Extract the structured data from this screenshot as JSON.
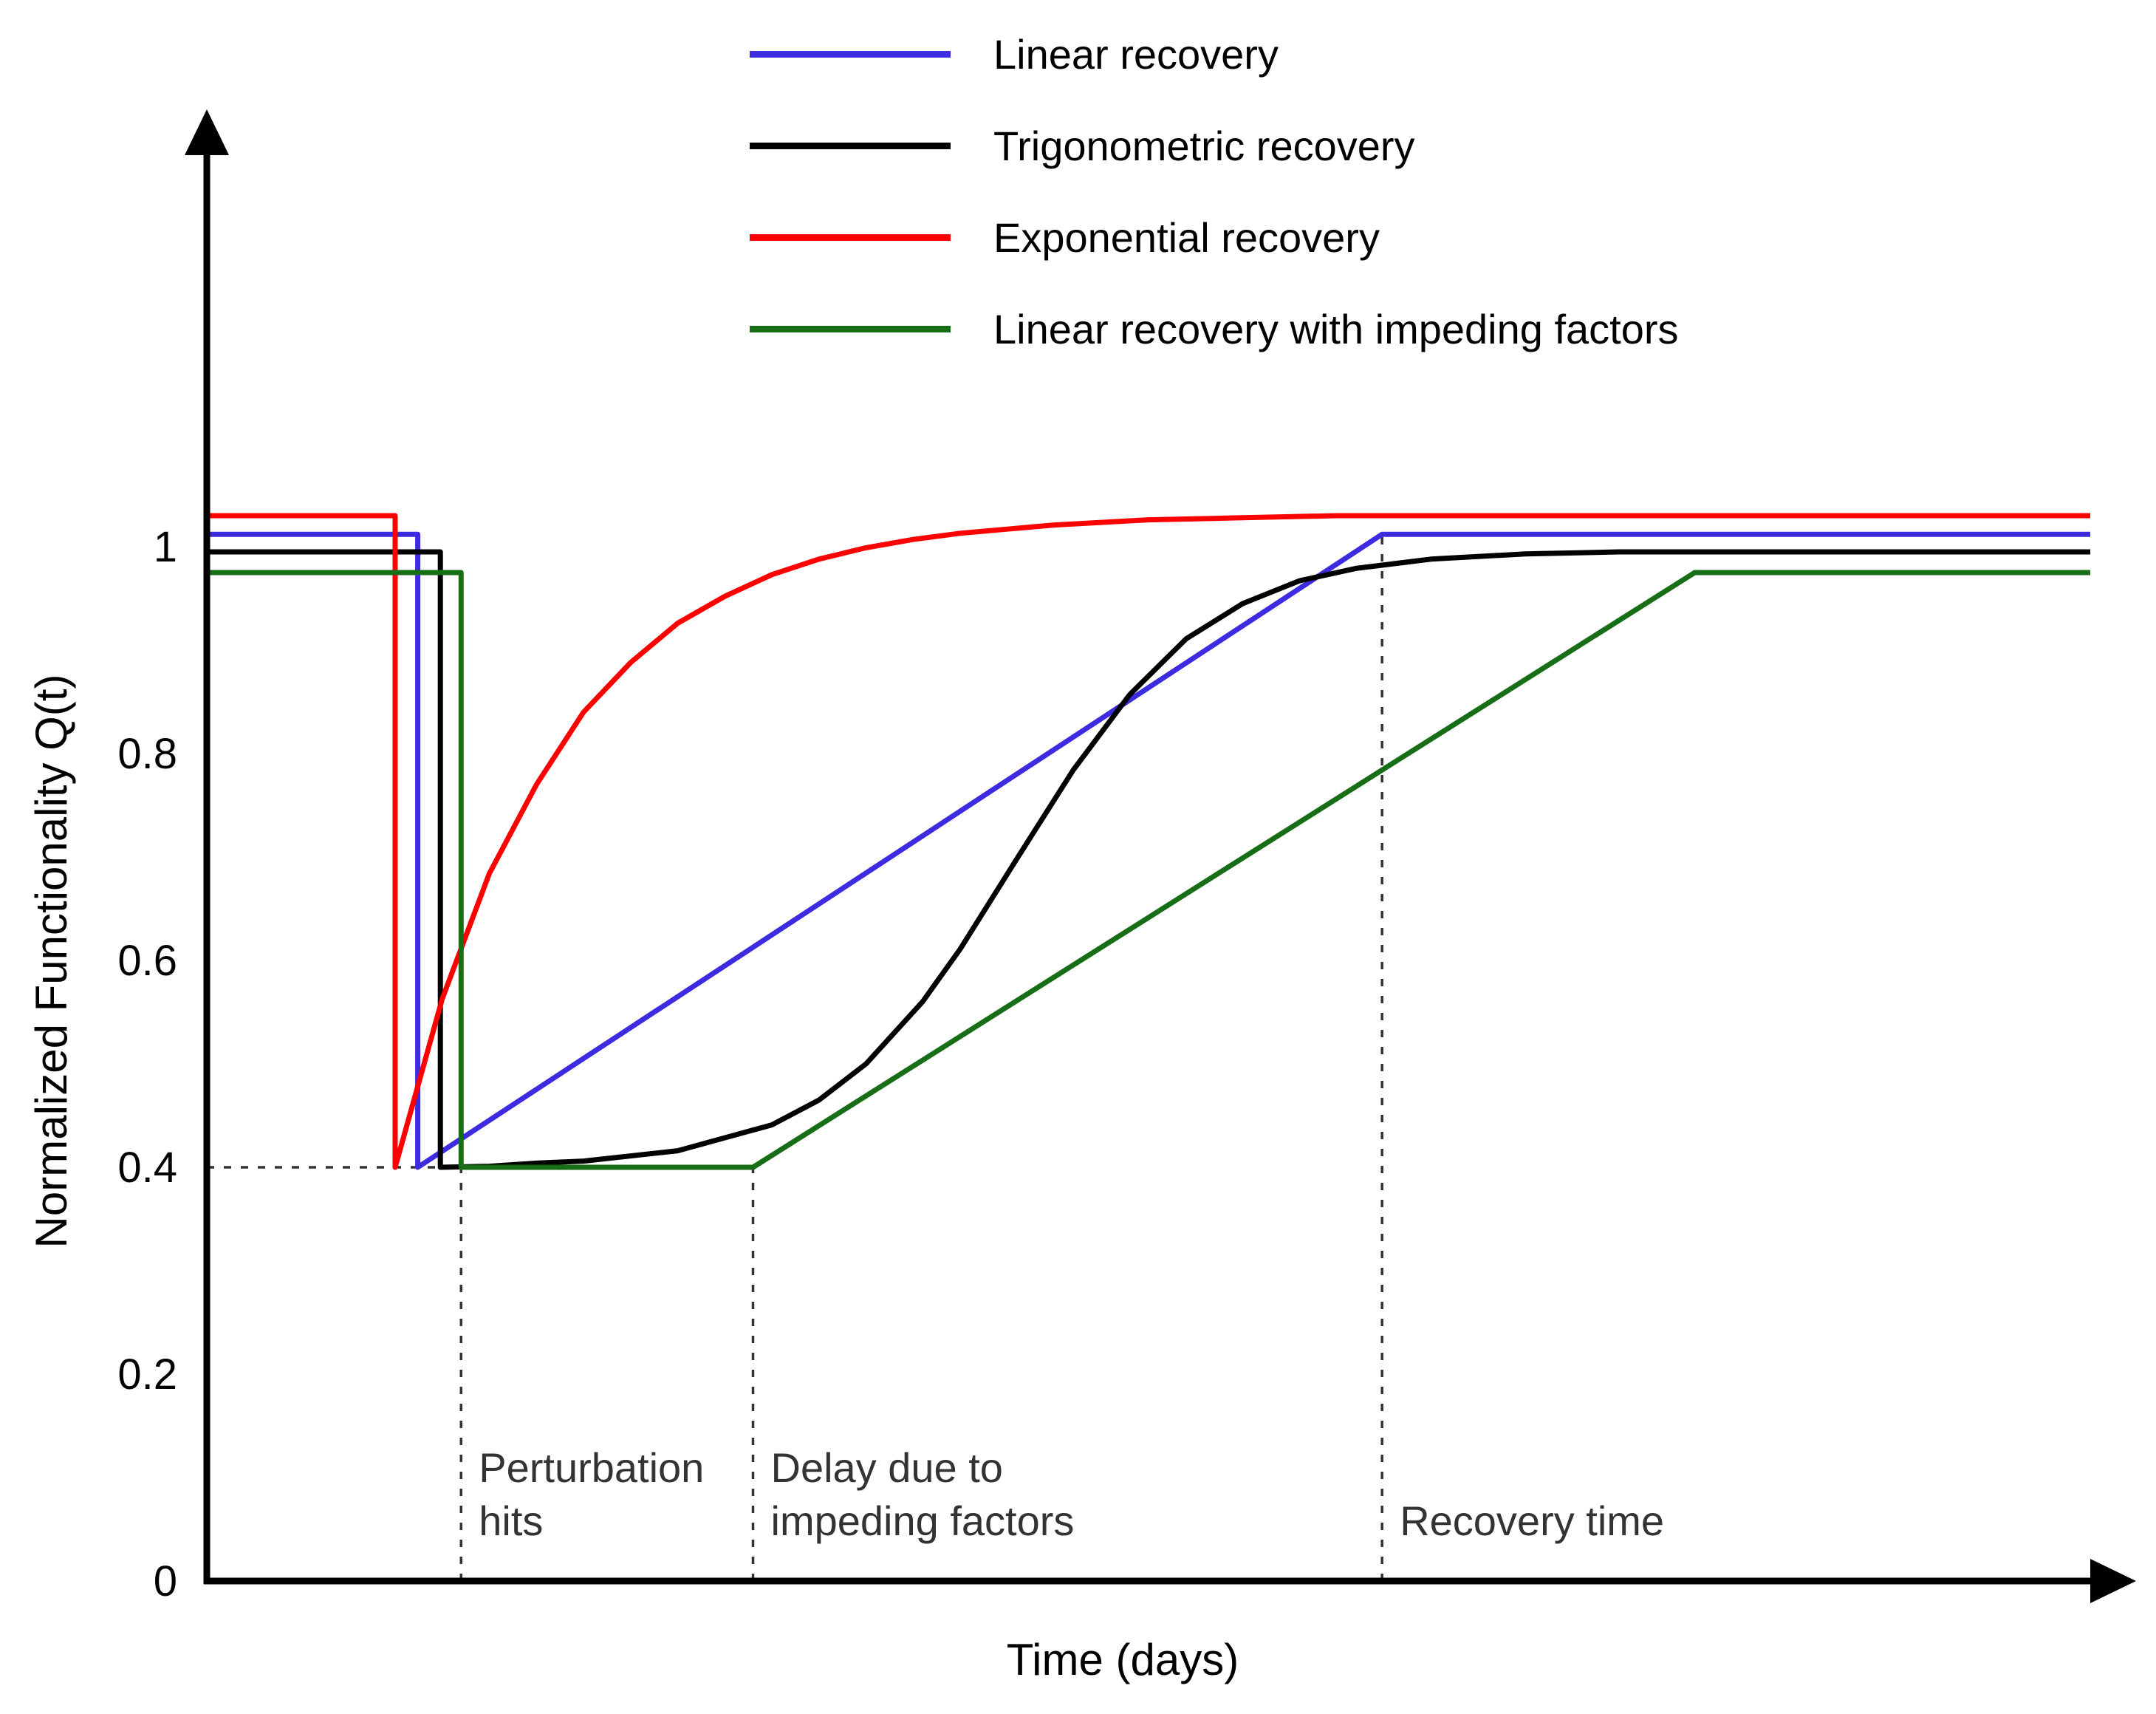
{
  "figure": {
    "ylabel": "Normalized Functionality  Q(t)",
    "xlabel": "Time (days)"
  },
  "legend": {
    "items": [
      {
        "label": "Linear recovery",
        "color": "#3c2bdf"
      },
      {
        "label": "Trigonometric recovery",
        "color": "#000000"
      },
      {
        "label": "Exponential recovery",
        "color": "#ff0000"
      },
      {
        "label": "Linear recovery with impeding factors",
        "color": "#176e17"
      }
    ]
  },
  "chart_data": {
    "type": "line",
    "title": "",
    "xlabel": "Time (days)",
    "ylabel": "Normalized Functionality Q(t)",
    "xlim": [
      0,
      10
    ],
    "ylim": [
      0,
      1.12
    ],
    "grid": false,
    "legend_position": "top-center",
    "x_tick_labels_shown": false,
    "yticks": [
      {
        "value": 0,
        "label": "0"
      },
      {
        "value": 0.2,
        "label": "0.2"
      },
      {
        "value": 0.4,
        "label": "0.4"
      },
      {
        "value": 0.6,
        "label": "0.6"
      },
      {
        "value": 0.8,
        "label": "0.8"
      },
      {
        "value": 1,
        "label": "1"
      }
    ],
    "series": [
      {
        "id": "linear-recovery",
        "name": "Linear recovery",
        "color": "#3c2bdf",
        "points": [
          [
            0,
            1.012
          ],
          [
            1.12,
            1.012
          ],
          [
            1.12,
            0.4
          ],
          [
            6.24,
            1.012
          ],
          [
            10,
            1.012
          ]
        ]
      },
      {
        "id": "trigonometric-recovery",
        "name": "Trigonometric recovery",
        "color": "#000000",
        "points": [
          [
            0,
            0.995
          ],
          [
            1.24,
            0.995
          ],
          [
            1.24,
            0.4
          ],
          [
            1.5,
            0.401
          ],
          [
            1.75,
            0.404
          ],
          [
            2.0,
            0.406
          ],
          [
            2.5,
            0.416
          ],
          [
            3.0,
            0.441
          ],
          [
            3.25,
            0.465
          ],
          [
            3.5,
            0.5
          ],
          [
            3.8,
            0.56
          ],
          [
            4.0,
            0.611
          ],
          [
            4.3,
            0.698
          ],
          [
            4.6,
            0.784
          ],
          [
            4.9,
            0.857
          ],
          [
            5.2,
            0.911
          ],
          [
            5.5,
            0.945
          ],
          [
            5.8,
            0.967
          ],
          [
            6.1,
            0.979
          ],
          [
            6.5,
            0.988
          ],
          [
            7.0,
            0.993
          ],
          [
            7.5,
            0.995
          ],
          [
            10,
            0.995
          ]
        ]
      },
      {
        "id": "exponential-recovery",
        "name": "Exponential recovery",
        "color": "#ff0000",
        "points": [
          [
            0,
            1.03
          ],
          [
            1.0,
            1.03
          ],
          [
            1.0,
            0.4
          ],
          [
            1.25,
            0.563
          ],
          [
            1.5,
            0.684
          ],
          [
            1.75,
            0.77
          ],
          [
            2.0,
            0.84
          ],
          [
            2.25,
            0.888
          ],
          [
            2.5,
            0.926
          ],
          [
            2.75,
            0.952
          ],
          [
            3.0,
            0.973
          ],
          [
            3.25,
            0.988
          ],
          [
            3.5,
            0.999
          ],
          [
            3.75,
            1.007
          ],
          [
            4.0,
            1.013
          ],
          [
            4.25,
            1.017
          ],
          [
            4.5,
            1.021
          ],
          [
            5.0,
            1.026
          ],
          [
            5.5,
            1.028
          ],
          [
            6.0,
            1.03
          ],
          [
            10,
            1.03
          ]
        ]
      },
      {
        "id": "linear-recovery-impeding",
        "name": "Linear recovery with impeding factors",
        "color": "#176e17",
        "points": [
          [
            0,
            0.975
          ],
          [
            1.35,
            0.975
          ],
          [
            1.35,
            0.4
          ],
          [
            2.9,
            0.4
          ],
          [
            7.9,
            0.975
          ],
          [
            10,
            0.975
          ]
        ]
      }
    ],
    "annotations": {
      "hline": {
        "y": 0.4,
        "x0": 0,
        "x1": 1.35
      },
      "vlines": [
        {
          "x": 1.35,
          "y0": 0,
          "y1": 0.4,
          "label": "Perturbation hits",
          "label_lines": [
            "Perturbation",
            "hits"
          ]
        },
        {
          "x": 2.9,
          "y0": 0,
          "y1": 0.4,
          "label": "Delay due to impeding factors",
          "label_lines": [
            "Delay due to",
            "impeding factors"
          ]
        },
        {
          "x": 6.24,
          "y0": 0,
          "y1": 1.012,
          "label": "Recovery time",
          "label_lines": [
            "Recovery time"
          ]
        }
      ]
    }
  }
}
